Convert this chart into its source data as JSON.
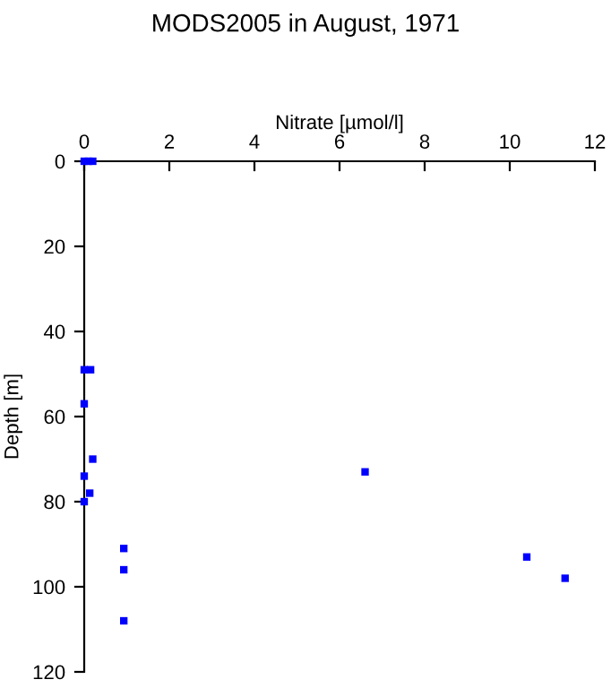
{
  "chart_data": {
    "type": "scatter",
    "title": "MODS2005 in August, 1971",
    "xlabel": "Nitrate [µmol/l]",
    "ylabel": "Depth [m]",
    "x": [
      0,
      0.1,
      0.2,
      0,
      0.15,
      0,
      0.2,
      0,
      0.13,
      0,
      0.93,
      0.93,
      0.93,
      6.6,
      10.4,
      11.3
    ],
    "series": [
      {
        "color": "#0000ff",
        "values": [
          0,
          0,
          0,
          49,
          49,
          57,
          70,
          74,
          78,
          80,
          91,
          96,
          108,
          73,
          93,
          98
        ]
      }
    ],
    "xlim": [
      0,
      12
    ],
    "xticks": [
      0,
      2,
      4,
      6,
      8,
      10,
      12
    ],
    "ylim": [
      120,
      0
    ],
    "yticks": [
      0,
      20,
      40,
      60,
      80,
      100,
      120
    ],
    "marker": "square",
    "grid": false,
    "legend": false
  }
}
